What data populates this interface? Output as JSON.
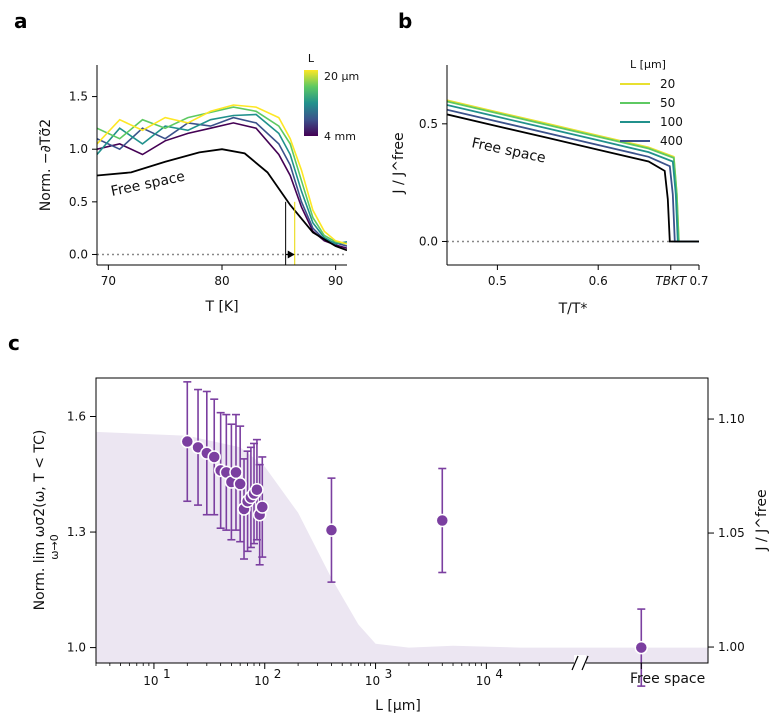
{
  "panels": {
    "a": "a",
    "b": "b",
    "c": "c"
  },
  "chart_data": [
    {
      "type": "line",
      "panel": "a",
      "xlabel": "T [K]",
      "ylabel": "Norm. −∂Tσ̃2",
      "xlim": [
        69,
        91
      ],
      "ylim": [
        -0.1,
        1.8
      ],
      "xticks": [
        70,
        80,
        90
      ],
      "xticklabels": [
        "70",
        "80",
        "90"
      ],
      "yticks": [
        0.0,
        0.5,
        1.0,
        1.5
      ],
      "yticklabels": [
        "0.0",
        "0.5",
        "1.0",
        "1.5"
      ],
      "annotation": "Free space",
      "colorbar": {
        "title": "L",
        "max_label": "20 μm",
        "min_label": "4 mm",
        "colors": [
          "#fde725",
          "#5ec962",
          "#21918c",
          "#3b528b",
          "#440154"
        ]
      },
      "vlines": [
        {
          "x": 85.6,
          "color": "#000000"
        },
        {
          "x": 86.4,
          "color": "#e8d800"
        }
      ],
      "zero_line": true,
      "free_space": {
        "x": [
          69,
          72,
          75,
          78,
          80,
          82,
          84,
          86,
          88,
          90,
          91
        ],
        "y": [
          0.75,
          0.78,
          0.88,
          0.97,
          1.0,
          0.96,
          0.78,
          0.47,
          0.21,
          0.08,
          0.04
        ]
      },
      "series": [
        {
          "color": "#440154",
          "x": [
            69,
            71,
            73,
            75,
            77,
            79,
            81,
            83,
            85,
            86,
            87,
            88,
            89,
            90,
            91
          ],
          "y": [
            1.0,
            1.05,
            0.95,
            1.08,
            1.15,
            1.2,
            1.25,
            1.2,
            0.95,
            0.75,
            0.45,
            0.22,
            0.13,
            0.09,
            0.06
          ]
        },
        {
          "color": "#3b528b",
          "x": [
            69,
            71,
            73,
            75,
            77,
            79,
            81,
            83,
            85,
            86,
            87,
            88,
            89,
            90,
            91
          ],
          "y": [
            1.1,
            1.0,
            1.2,
            1.1,
            1.25,
            1.22,
            1.3,
            1.25,
            1.05,
            0.85,
            0.5,
            0.25,
            0.14,
            0.11,
            0.08
          ]
        },
        {
          "color": "#21918c",
          "x": [
            69,
            71,
            73,
            75,
            77,
            79,
            81,
            83,
            85,
            86,
            87,
            88,
            89,
            90,
            91
          ],
          "y": [
            0.95,
            1.2,
            1.05,
            1.22,
            1.18,
            1.28,
            1.32,
            1.33,
            1.15,
            0.95,
            0.6,
            0.3,
            0.16,
            0.1,
            0.12
          ]
        },
        {
          "color": "#5ec962",
          "x": [
            69,
            71,
            73,
            75,
            77,
            79,
            81,
            83,
            85,
            86,
            87,
            88,
            89,
            90,
            91
          ],
          "y": [
            1.2,
            1.1,
            1.28,
            1.2,
            1.3,
            1.35,
            1.4,
            1.36,
            1.22,
            1.05,
            0.7,
            0.35,
            0.18,
            0.12,
            0.1
          ]
        },
        {
          "color": "#fde725",
          "x": [
            69,
            71,
            73,
            75,
            77,
            79,
            81,
            83,
            85,
            86,
            87,
            88,
            89,
            90,
            91
          ],
          "y": [
            1.05,
            1.28,
            1.18,
            1.3,
            1.25,
            1.36,
            1.42,
            1.4,
            1.3,
            1.1,
            0.8,
            0.42,
            0.22,
            0.13,
            0.1
          ]
        }
      ]
    },
    {
      "type": "line",
      "panel": "b",
      "xlabel": "T/T*",
      "ylabel": "J / J^free",
      "xlim": [
        0.45,
        0.7
      ],
      "ylim": [
        -0.1,
        0.75
      ],
      "xticks": [
        0.5,
        0.6,
        0.7
      ],
      "xticklabels": [
        "0.5",
        "0.6",
        "0.7"
      ],
      "yticks": [
        0.0,
        0.5
      ],
      "yticklabels": [
        "0.0",
        "0.5"
      ],
      "extra_xtick": {
        "x": 0.672,
        "label": "TBKT"
      },
      "annotation": "Free space",
      "zero_line": true,
      "legend": {
        "title": "L [μm]",
        "placement": "top-right"
      },
      "series": [
        {
          "name": "20",
          "color": "#e8e030",
          "x": [
            0.45,
            0.5,
            0.55,
            0.6,
            0.65,
            0.675,
            0.678,
            0.68,
            0.7
          ],
          "y": [
            0.6,
            0.55,
            0.5,
            0.45,
            0.4,
            0.36,
            0.2,
            0.0,
            0.0
          ]
        },
        {
          "name": "50",
          "color": "#5ec962",
          "x": [
            0.45,
            0.5,
            0.55,
            0.6,
            0.65,
            0.675,
            0.678,
            0.68,
            0.7
          ],
          "y": [
            0.595,
            0.545,
            0.495,
            0.445,
            0.395,
            0.355,
            0.2,
            0.0,
            0.0
          ]
        },
        {
          "name": "100",
          "color": "#21918c",
          "x": [
            0.45,
            0.5,
            0.55,
            0.6,
            0.65,
            0.674,
            0.677,
            0.679,
            0.7
          ],
          "y": [
            0.58,
            0.53,
            0.48,
            0.43,
            0.38,
            0.34,
            0.2,
            0.0,
            0.0
          ]
        },
        {
          "name": "400",
          "color": "#3b528b",
          "x": [
            0.45,
            0.5,
            0.55,
            0.6,
            0.65,
            0.671,
            0.674,
            0.676,
            0.7
          ],
          "y": [
            0.56,
            0.51,
            0.46,
            0.41,
            0.36,
            0.32,
            0.2,
            0.0,
            0.0
          ]
        },
        {
          "color": "#000000",
          "x": [
            0.45,
            0.5,
            0.55,
            0.6,
            0.65,
            0.666,
            0.669,
            0.671,
            0.7
          ],
          "y": [
            0.54,
            0.49,
            0.44,
            0.39,
            0.34,
            0.3,
            0.18,
            0.0,
            0.0
          ]
        }
      ]
    },
    {
      "type": "scatter",
      "panel": "c",
      "xlabel": "L [μm]",
      "ylabel": "Norm. lim ωσ2(ω, T < TC)",
      "ylabel_sub": "ω→0",
      "ylabel_right": "J / J^free",
      "xscale": "log",
      "xlim": [
        3,
        1000000
      ],
      "ylim": [
        0.96,
        1.7
      ],
      "xticks": [
        10,
        100,
        1000,
        10000
      ],
      "xticklabels": [
        "10",
        "10",
        "10",
        "10"
      ],
      "xtick_exponents": [
        "1",
        "2",
        "3",
        "4"
      ],
      "free_space_label": "Free space",
      "free_space_x": 250000,
      "break_x": 70000,
      "yticks": [
        1.0,
        1.3,
        1.6
      ],
      "yticklabels": [
        "1.0",
        "1.3",
        "1.6"
      ],
      "right_yticks": [
        1.0,
        1.05,
        1.1
      ],
      "right_yticklabels": [
        "1.00",
        "1.05",
        "1.10"
      ],
      "right_ylim": [
        0.993,
        1.118
      ],
      "marker_color": "#7b3fa0",
      "shade_color": "#ece6f2",
      "shade": {
        "x": [
          3,
          20,
          60,
          100,
          200,
          400,
          700,
          1000,
          2000,
          5000,
          20000,
          250000,
          1000000
        ],
        "y": [
          1.56,
          1.55,
          1.52,
          1.47,
          1.35,
          1.18,
          1.06,
          1.01,
          1.0,
          1.005,
          1.0,
          1.0,
          1.0
        ]
      },
      "points": [
        {
          "x": 20,
          "y": 1.535,
          "err": 0.155
        },
        {
          "x": 25,
          "y": 1.52,
          "err": 0.15
        },
        {
          "x": 30,
          "y": 1.505,
          "err": 0.16
        },
        {
          "x": 35,
          "y": 1.495,
          "err": 0.15
        },
        {
          "x": 40,
          "y": 1.46,
          "err": 0.15
        },
        {
          "x": 45,
          "y": 1.455,
          "err": 0.15
        },
        {
          "x": 50,
          "y": 1.43,
          "err": 0.15
        },
        {
          "x": 55,
          "y": 1.455,
          "err": 0.15
        },
        {
          "x": 60,
          "y": 1.425,
          "err": 0.15
        },
        {
          "x": 65,
          "y": 1.36,
          "err": 0.13
        },
        {
          "x": 70,
          "y": 1.38,
          "err": 0.13
        },
        {
          "x": 75,
          "y": 1.39,
          "err": 0.13
        },
        {
          "x": 80,
          "y": 1.4,
          "err": 0.13
        },
        {
          "x": 85,
          "y": 1.41,
          "err": 0.13
        },
        {
          "x": 90,
          "y": 1.345,
          "err": 0.13
        },
        {
          "x": 95,
          "y": 1.365,
          "err": 0.13
        },
        {
          "x": 400,
          "y": 1.305,
          "err": 0.135
        },
        {
          "x": 4000,
          "y": 1.33,
          "err": 0.135
        },
        {
          "x": 250000,
          "y": 1.0,
          "err": 0.1
        }
      ]
    }
  ]
}
